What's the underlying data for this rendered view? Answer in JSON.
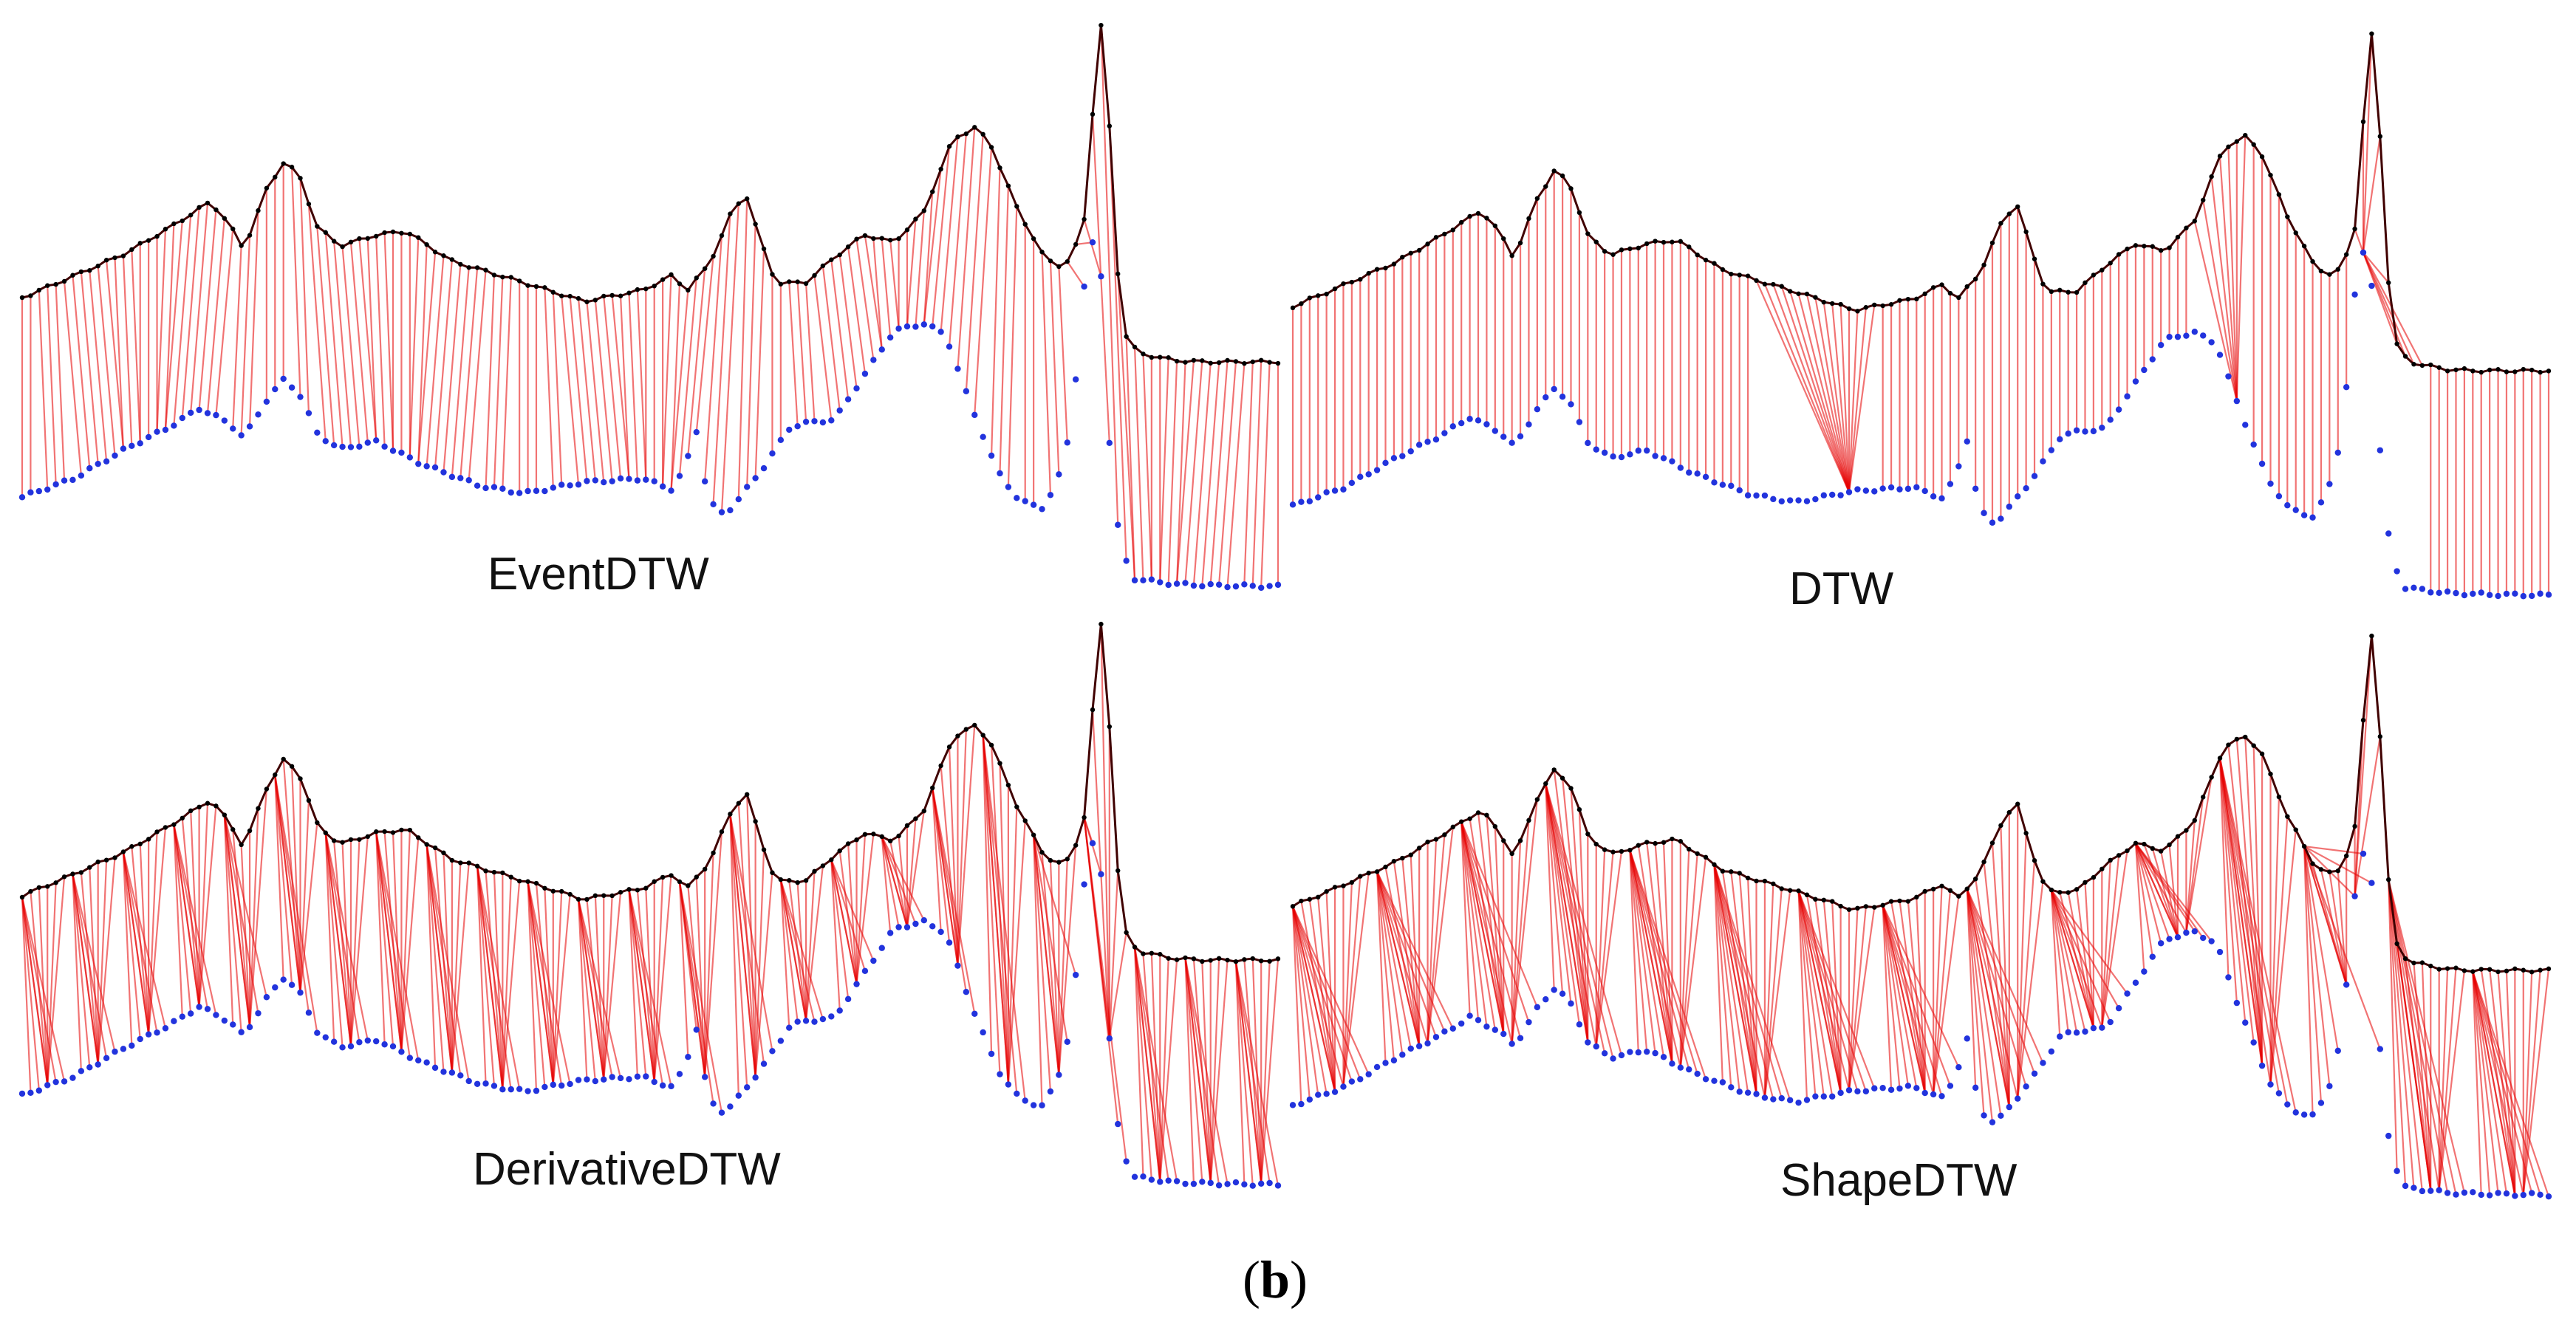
{
  "figure": {
    "caption_open": "(",
    "caption_letter": "b",
    "caption_close": ")",
    "panels": [
      {
        "id": "event",
        "label": "EventDTW",
        "warping": "near-vertical"
      },
      {
        "id": "dtw",
        "label": "DTW",
        "warping": "fans"
      },
      {
        "id": "derivative",
        "label": "DerivativeDTW",
        "warping": "zigzag"
      },
      {
        "id": "shape",
        "label": "ShapeDTW",
        "warping": "wide-zigzag"
      }
    ]
  },
  "colors": {
    "link_strong": "#e60000",
    "link_light": "#ffd0d0",
    "top_series_point": "#000000",
    "bottom_series_point": "#2233dd",
    "top_series_line": "#400000"
  }
}
